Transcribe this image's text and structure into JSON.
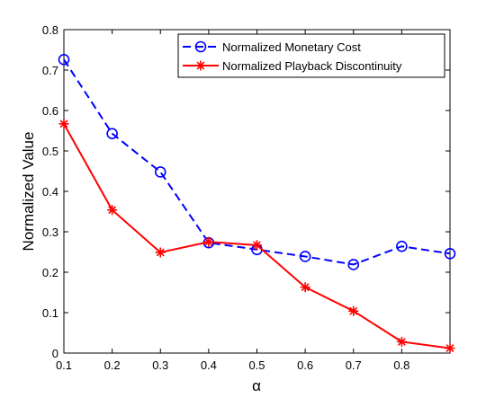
{
  "chart_data": {
    "type": "line",
    "xlabel": "α",
    "ylabel": "Normalized Value",
    "xlim": [
      0.1,
      0.9
    ],
    "ylim": [
      0,
      0.8
    ],
    "x_ticks": [
      "0.1",
      "0.2",
      "0.3",
      "0.4",
      "0.5",
      "0.6",
      "0.7",
      "0.8"
    ],
    "y_ticks": [
      "0",
      "0.1",
      "0.2",
      "0.3",
      "0.4",
      "0.5",
      "0.6",
      "0.7",
      "0.8"
    ],
    "grid": false,
    "legend_position": "top-right",
    "x": [
      0.1,
      0.2,
      0.3,
      0.4,
      0.5,
      0.6,
      0.7,
      0.8,
      0.9
    ],
    "series": [
      {
        "name": "Normalized Monetary Cost",
        "color": "#0000ff",
        "line_style": "dashed",
        "marker": "circle",
        "values": [
          0.726,
          0.543,
          0.448,
          0.273,
          0.256,
          0.239,
          0.219,
          0.264,
          0.246
        ]
      },
      {
        "name": "Normalized Playback Discontinuity",
        "color": "#ff0000",
        "line_style": "solid",
        "marker": "asterisk",
        "values": [
          0.567,
          0.354,
          0.249,
          0.275,
          0.267,
          0.163,
          0.104,
          0.028,
          0.012
        ]
      }
    ]
  }
}
